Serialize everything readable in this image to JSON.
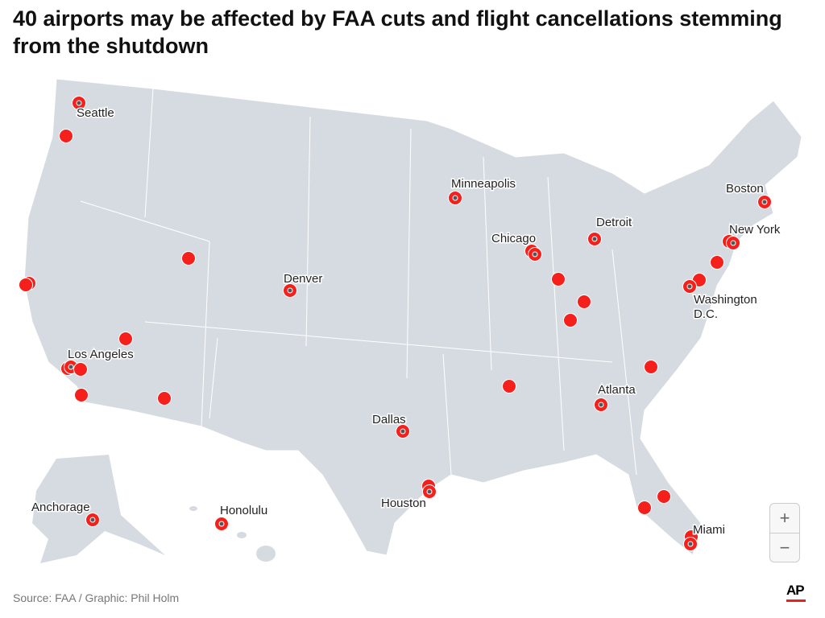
{
  "title": "40 airports may be affected by FAA cuts and flight cancellations stemming from the shutdown",
  "source": "Source: FAA / Graphic: Phil Holm",
  "logo": "AP",
  "zoom_controls": {
    "zoom_in": "+",
    "zoom_out": "−"
  },
  "colors": {
    "marker": "#f5201b",
    "land": "#d6dbe2",
    "border": "#ffffff",
    "hub_dot": "#555555"
  },
  "cities": [
    "Seattle",
    "Minneapolis",
    "Boston",
    "Detroit",
    "Chicago",
    "New York",
    "Denver",
    "Washington",
    "D.C.",
    "Los Angeles",
    "Atlanta",
    "Dallas",
    "Houston",
    "Anchorage",
    "Honolulu",
    "Miami"
  ]
}
